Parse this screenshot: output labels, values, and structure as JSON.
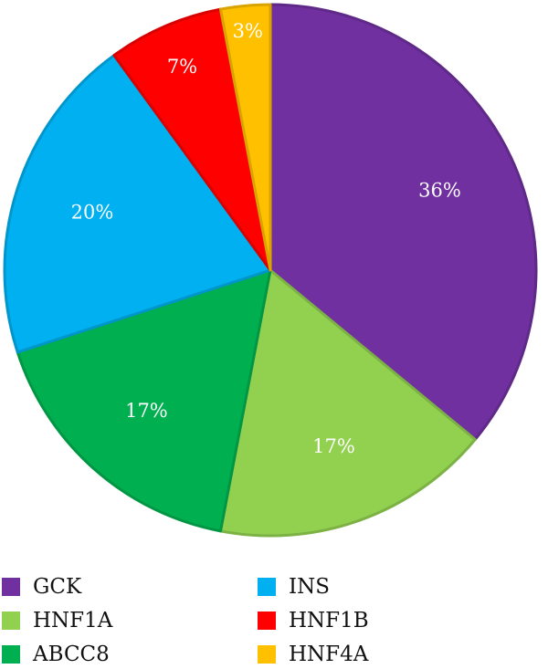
{
  "chart_data": {
    "type": "pie",
    "title": "",
    "start": "top-clockwise",
    "slices": [
      {
        "label": "GCK",
        "value": 36,
        "display": "36%",
        "color": "#7030a0"
      },
      {
        "label": "HNF1A",
        "value": 17,
        "display": "17%",
        "color": "#92d050"
      },
      {
        "label": "ABCC8",
        "value": 17,
        "display": "17%",
        "color": "#00b050"
      },
      {
        "label": "INS",
        "value": 20,
        "display": "20%",
        "color": "#00b0f0"
      },
      {
        "label": "HNF1B",
        "value": 7,
        "display": "7%",
        "color": "#ff0000"
      },
      {
        "label": "HNF4A",
        "value": 3,
        "display": "3%",
        "color": "#ffc000"
      }
    ],
    "legend": {
      "placement": "bottom",
      "items": [
        {
          "label": "GCK",
          "color": "#7030a0"
        },
        {
          "label": "INS",
          "color": "#00b0f0"
        },
        {
          "label": "HNF1A",
          "color": "#92d050"
        },
        {
          "label": "HNF1B",
          "color": "#ff0000"
        },
        {
          "label": "ABCC8",
          "color": "#00b050"
        },
        {
          "label": "HNF4A",
          "color": "#ffc000"
        }
      ]
    }
  }
}
